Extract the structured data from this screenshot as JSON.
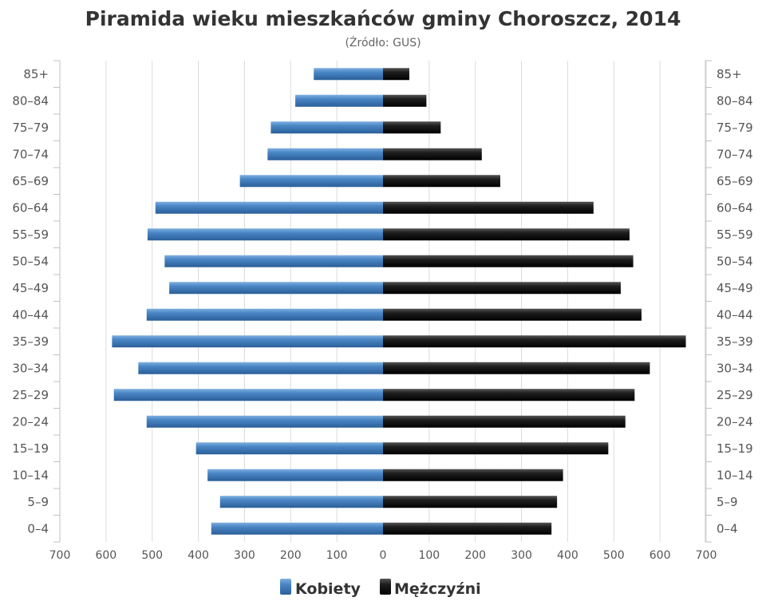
{
  "chart_data": {
    "type": "bar",
    "orientation": "horizontal-population-pyramid",
    "title": "Piramida wieku mieszkańców gminy Choroszcz, 2014",
    "subtitle": "(Źródło: GUS)",
    "categories": [
      "0–4",
      "5–9",
      "10–14",
      "15–19",
      "20–24",
      "25–29",
      "30–34",
      "35–39",
      "40–44",
      "45–49",
      "50–54",
      "55–59",
      "60–64",
      "65–69",
      "70–74",
      "75–79",
      "80–84",
      "85+"
    ],
    "series": [
      {
        "name": "Kobiety",
        "side": "left",
        "color": "#4a86c5",
        "values": [
          372,
          353,
          380,
          405,
          512,
          583,
          530,
          587,
          512,
          463,
          473,
          510,
          493,
          310,
          250,
          243,
          190,
          150
        ]
      },
      {
        "name": "Mężczyźni",
        "side": "right",
        "color": "#1a1a1a",
        "values": [
          365,
          377,
          390,
          488,
          525,
          545,
          578,
          656,
          560,
          515,
          542,
          534,
          456,
          254,
          214,
          125,
          94,
          57
        ]
      }
    ],
    "xlim": [
      -700,
      700
    ],
    "xticks": [
      {
        "value": -700,
        "label": "700"
      },
      {
        "value": -600,
        "label": "600"
      },
      {
        "value": -500,
        "label": "500"
      },
      {
        "value": -400,
        "label": "400"
      },
      {
        "value": -300,
        "label": "300"
      },
      {
        "value": -200,
        "label": "200"
      },
      {
        "value": -100,
        "label": "100"
      },
      {
        "value": 0,
        "label": "0"
      },
      {
        "value": 100,
        "label": "100"
      },
      {
        "value": 200,
        "label": "200"
      },
      {
        "value": 300,
        "label": "300"
      },
      {
        "value": 400,
        "label": "400"
      },
      {
        "value": 500,
        "label": "500"
      },
      {
        "value": 600,
        "label": "600"
      },
      {
        "value": 700,
        "label": "700"
      }
    ],
    "grid": true,
    "legend_position": "bottom-center"
  }
}
